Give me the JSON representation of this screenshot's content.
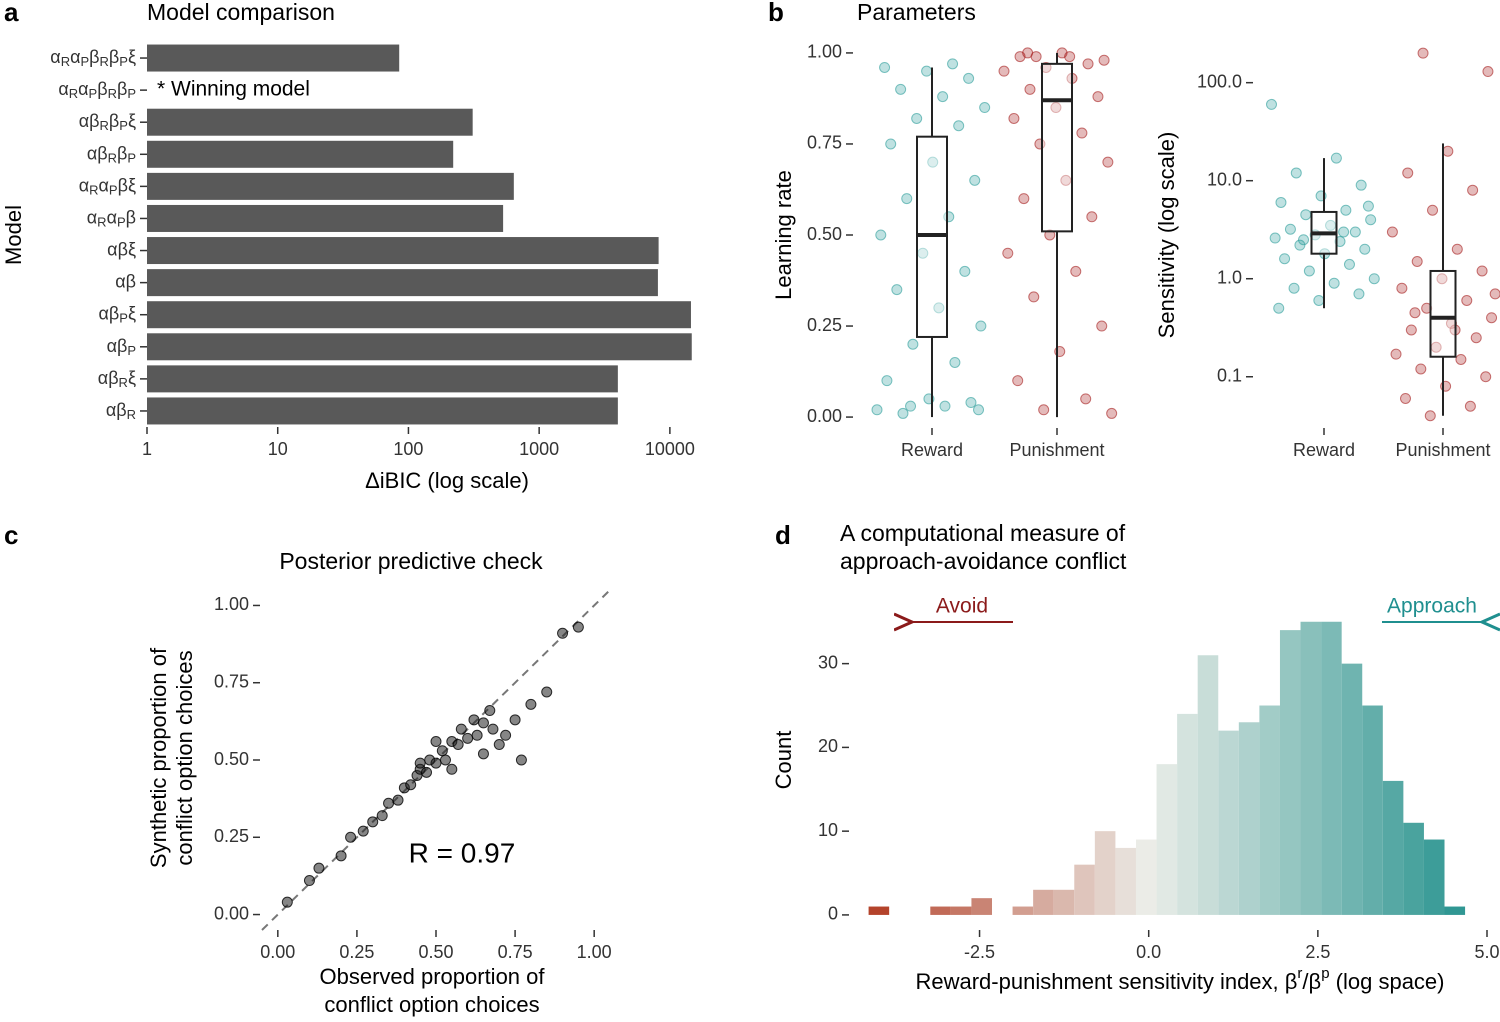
{
  "chart_data": [
    {
      "type": "hbar",
      "panel": "a",
      "title": "Model comparison",
      "xlabel": "ΔiBIC (log scale)",
      "ylabel": "Model",
      "categories": [
        "αRαPβRβPξ",
        "αRαPβRβP",
        "αβRβPξ",
        "αβRβP",
        "αRαPβξ",
        "αRαPβ",
        "αβξ",
        "αβ",
        "αβPξ",
        "αβP",
        "αβRξ",
        "αβR"
      ],
      "values": [
        85,
        null,
        310,
        220,
        640,
        530,
        8200,
        8100,
        14500,
        14700,
        4000,
        4000
      ],
      "annotation": "* Winning model",
      "color": "#595959",
      "xscale": "log",
      "xlim": [
        1,
        17000
      ],
      "xticks": [
        1,
        10,
        100,
        1000,
        10000
      ]
    },
    {
      "type": "box",
      "panel": "b",
      "title": "Parameters",
      "ylabel": "Learning rate",
      "categories": [
        "Reward",
        "Punishment"
      ],
      "colors": [
        "#2a9d9a",
        "#a51c1c"
      ],
      "points": [
        [
          0.02,
          0.03,
          0.01,
          0.04,
          0.05,
          0.1,
          0.15,
          0.2,
          0.25,
          0.3,
          0.35,
          0.4,
          0.45,
          0.5,
          0.55,
          0.6,
          0.65,
          0.7,
          0.75,
          0.8,
          0.82,
          0.85,
          0.88,
          0.9,
          0.93,
          0.95,
          0.96,
          0.97,
          0.03,
          0.02
        ],
        [
          0.99,
          0.98,
          1.0,
          0.99,
          0.97,
          0.96,
          0.95,
          0.93,
          0.9,
          0.88,
          0.85,
          0.82,
          0.78,
          0.75,
          0.7,
          0.65,
          0.6,
          0.55,
          0.5,
          0.45,
          0.4,
          0.33,
          0.25,
          0.18,
          0.1,
          0.05,
          0.02,
          0.01,
          0.99,
          1.0
        ]
      ],
      "box": [
        {
          "min": 0.0,
          "q1": 0.22,
          "median": 0.5,
          "q3": 0.77,
          "max": 0.96
        },
        {
          "min": 0.0,
          "q1": 0.51,
          "median": 0.87,
          "q3": 0.97,
          "max": 1.0
        }
      ],
      "ylim": [
        -0.03,
        1.03
      ],
      "yticks": [
        {
          "value": 0,
          "label": "0.00"
        },
        {
          "value": 0.25,
          "label": "0.25"
        },
        {
          "value": 0.5,
          "label": "0.50"
        },
        {
          "value": 0.75,
          "label": "0.75"
        },
        {
          "value": 1,
          "label": "1.00"
        }
      ]
    },
    {
      "type": "box",
      "ylabel": "Sensitivity (log scale)",
      "categories": [
        "Reward",
        "Punishment"
      ],
      "colors": [
        "#2a9d9a",
        "#a51c1c"
      ],
      "points": [
        [
          60,
          17,
          12,
          9,
          7,
          6,
          5,
          4.5,
          4,
          3.5,
          3.2,
          3,
          2.8,
          2.6,
          2.4,
          2.2,
          2,
          1.8,
          1.6,
          1.4,
          1.2,
          1,
          0.9,
          0.8,
          0.7,
          0.6,
          0.5,
          3,
          2.5,
          5.5
        ],
        [
          200,
          130,
          20,
          12,
          8,
          5,
          3,
          2,
          1.5,
          1.2,
          1,
          0.8,
          0.6,
          0.5,
          0.4,
          0.35,
          0.3,
          0.25,
          0.2,
          0.17,
          0.15,
          0.12,
          0.1,
          0.08,
          0.06,
          0.05,
          0.04,
          0.7,
          0.3,
          0.45
        ]
      ],
      "box": [
        {
          "min": 0.5,
          "q1": 1.8,
          "median": 2.9,
          "q3": 4.8,
          "max": 17
        },
        {
          "min": 0.04,
          "q1": 0.16,
          "median": 0.4,
          "q3": 1.2,
          "max": 24
        }
      ],
      "yscale": "log",
      "ylim": [
        0.03,
        260
      ],
      "yticks": [
        0.1,
        {
          "value": 1,
          "label": "1.0"
        },
        {
          "value": 10,
          "label": "10.0"
        },
        {
          "value": 100,
          "label": "100.0"
        }
      ]
    },
    {
      "type": "scatter",
      "panel": "c",
      "title": "Posterior predictive check",
      "xlabel": [
        "Observed proportion of",
        "conflict option choices"
      ],
      "ylabel": [
        "Synthetic proportion of",
        "conflict option choices"
      ],
      "annotation": "R = 0.97",
      "color": "#222222",
      "x": [
        0.03,
        0.1,
        0.13,
        0.2,
        0.23,
        0.27,
        0.3,
        0.33,
        0.35,
        0.38,
        0.4,
        0.42,
        0.44,
        0.45,
        0.47,
        0.48,
        0.5,
        0.52,
        0.53,
        0.55,
        0.57,
        0.58,
        0.6,
        0.62,
        0.63,
        0.65,
        0.67,
        0.68,
        0.7,
        0.72,
        0.75,
        0.77,
        0.8,
        0.85,
        0.9,
        0.95,
        0.65,
        0.5,
        0.45,
        0.55
      ],
      "y": [
        0.04,
        0.11,
        0.15,
        0.19,
        0.25,
        0.27,
        0.3,
        0.32,
        0.36,
        0.37,
        0.41,
        0.42,
        0.45,
        0.47,
        0.46,
        0.5,
        0.49,
        0.53,
        0.5,
        0.56,
        0.55,
        0.6,
        0.57,
        0.63,
        0.58,
        0.62,
        0.66,
        0.6,
        0.55,
        0.58,
        0.63,
        0.5,
        0.68,
        0.72,
        0.91,
        0.93,
        0.52,
        0.56,
        0.49,
        0.47
      ],
      "xlim": [
        -0.05,
        1.05
      ],
      "ylim": [
        -0.05,
        1.05
      ],
      "xticks": [
        {
          "value": 0,
          "label": "0.00"
        },
        {
          "value": 0.25,
          "label": "0.25"
        },
        {
          "value": 0.5,
          "label": "0.50"
        },
        {
          "value": 0.75,
          "label": "0.75"
        },
        {
          "value": 1,
          "label": "1.00"
        }
      ],
      "yticks": [
        {
          "value": 0,
          "label": "0.00"
        },
        {
          "value": 0.25,
          "label": "0.25"
        },
        {
          "value": 0.5,
          "label": "0.50"
        },
        {
          "value": 0.75,
          "label": "0.75"
        },
        {
          "value": 1,
          "label": "1.00"
        }
      ]
    },
    {
      "type": "histogram",
      "panel": "d",
      "title": [
        "A computational measure of",
        "approach-avoidance conflict"
      ],
      "xlabel": [
        "Reward-punishment sensitivity index, β",
        "r",
        "/β",
        "p",
        " (log space)"
      ],
      "ylabel": "Count",
      "left_label": "Avoid",
      "right_label": "Approach",
      "left_color": "#8b1a1a",
      "right_color": "#1f8f8f",
      "color_low": "#b23c24",
      "color_mid": "#eceee9",
      "color_high": "#2a9490",
      "bins": [
        -4.14,
        -3.836,
        -3.532,
        -3.228,
        -2.924,
        -2.62,
        -2.316,
        -2.012,
        -1.708,
        -1.404,
        -1.1,
        -0.796,
        -0.492,
        -0.188,
        0.116,
        0.42,
        0.724,
        1.028,
        1.332,
        1.636,
        1.94,
        2.244,
        2.548,
        2.852,
        3.156,
        3.46,
        3.764,
        4.068,
        4.372,
        4.676
      ],
      "counts": [
        1,
        0,
        0,
        1,
        1,
        2,
        0,
        1,
        3,
        3,
        6,
        10,
        8,
        9,
        18,
        24,
        31,
        22,
        23,
        25,
        34,
        35,
        35,
        30,
        25,
        16,
        11,
        9,
        1
      ],
      "xlim": [
        -4.4,
        5.0
      ],
      "xticks": [
        -2.5,
        {
          "value": 0,
          "label": "0.0"
        },
        2.5,
        {
          "value": 5,
          "label": "5.0"
        }
      ],
      "ylim": [
        -1.8,
        37
      ],
      "yticks": [
        0,
        10,
        20,
        30
      ]
    }
  ]
}
